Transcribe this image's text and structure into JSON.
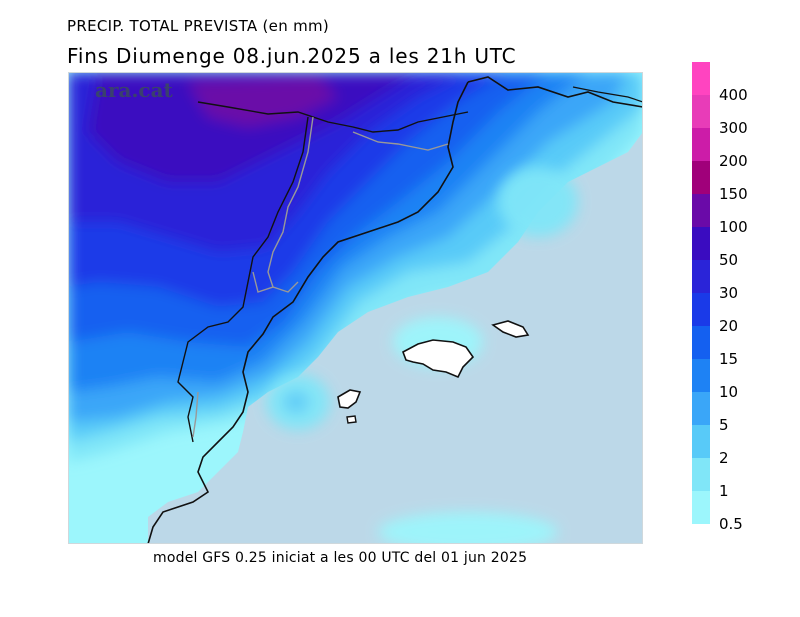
{
  "header": {
    "title": "PRECIP. TOTAL PREVISTA (en mm)",
    "subtitle": "Fins Diumenge 08.jun.2025 a les 21h UTC"
  },
  "footer": {
    "model_info": "model GFS 0.25 iniciat a les 00 UTC del 01 jun 2025"
  },
  "watermark": "ara.cat",
  "colors": {
    "sea": "#bcd8e8",
    "coast": "#111111",
    "border": "#999999"
  },
  "legend": {
    "items": [
      {
        "label": "400",
        "color": "#ff44c0"
      },
      {
        "label": "300",
        "color": "#e83cb8"
      },
      {
        "label": "200",
        "color": "#cc1ca8"
      },
      {
        "label": "150",
        "color": "#a0007a"
      },
      {
        "label": "100",
        "color": "#6a0aa8"
      },
      {
        "label": "50",
        "color": "#3a0cc0"
      },
      {
        "label": "30",
        "color": "#2a24d8"
      },
      {
        "label": "20",
        "color": "#1a3ae8"
      },
      {
        "label": "15",
        "color": "#1460f0"
      },
      {
        "label": "10",
        "color": "#1e82f4"
      },
      {
        "label": "5",
        "color": "#3aa6f8"
      },
      {
        "label": "2",
        "color": "#58caf8"
      },
      {
        "label": "1",
        "color": "#80e6f8"
      },
      {
        "label": "0.5",
        "color": "#9cf6fc"
      }
    ]
  }
}
